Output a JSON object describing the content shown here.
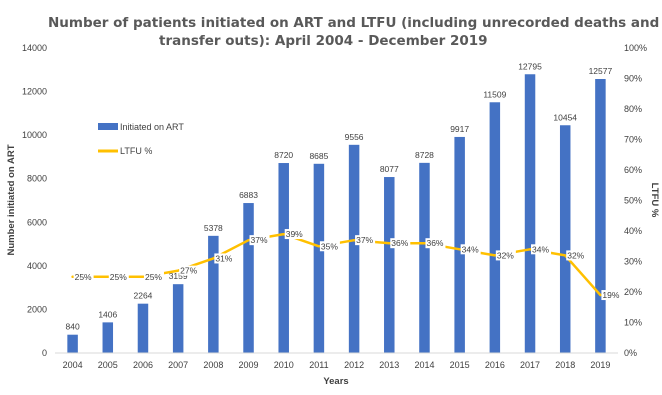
{
  "chart_data": {
    "type": "bar",
    "title_line1": "Number of patients initiated on ART and LTFU (including unrecorded deaths and",
    "title_line2": "transfer outs): April 2004 - December 2019",
    "xlabel": "Years",
    "ylabel": "Number initiated on ART",
    "y2label": "LTFU %",
    "categories": [
      "2004",
      "2005",
      "2006",
      "2007",
      "2008",
      "2009",
      "2010",
      "2011",
      "2012",
      "2013",
      "2014",
      "2015",
      "2016",
      "2017",
      "2018",
      "2019"
    ],
    "series": [
      {
        "name": "Initiated on ART",
        "type": "bar",
        "axis": "left",
        "color": "#4472C4",
        "values": [
          840,
          1406,
          2264,
          3159,
          5378,
          6883,
          8720,
          8685,
          9556,
          8077,
          8728,
          9917,
          11509,
          12795,
          10454,
          12577
        ]
      },
      {
        "name": "LTFU %",
        "type": "line",
        "axis": "right",
        "color": "#FFC000",
        "values": [
          25,
          25,
          25,
          27,
          31,
          37,
          39,
          35,
          37,
          36,
          36,
          34,
          32,
          34,
          32,
          19
        ],
        "labels": [
          "25%",
          "25%",
          "25%",
          "27%",
          "31%",
          "37%",
          "39%",
          "35%",
          "37%",
          "36%",
          "36%",
          "34%",
          "32%",
          "34%",
          "32%",
          "19%"
        ]
      }
    ],
    "ylim": [
      0,
      14000
    ],
    "y_ticks": [
      "0",
      "2000",
      "4000",
      "6000",
      "8000",
      "10000",
      "12000",
      "14000"
    ],
    "y2lim": [
      0,
      100
    ],
    "y2_ticks": [
      "0%",
      "10%",
      "20%",
      "30%",
      "40%",
      "50%",
      "60%",
      "70%",
      "80%",
      "90%",
      "100%"
    ],
    "legend_position": "left",
    "grid": false
  }
}
